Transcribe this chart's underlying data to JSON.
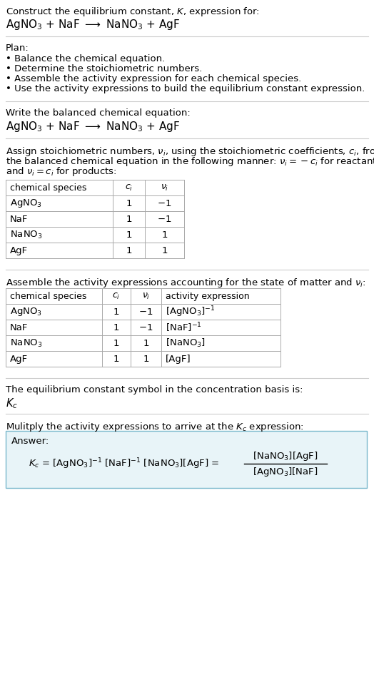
{
  "title_line1": "Construct the equilibrium constant, $K$, expression for:",
  "title_line2": "AgNO$_3$ + NaF $\\longrightarrow$ NaNO$_3$ + AgF",
  "plan_header": "Plan:",
  "plan_items": [
    "• Balance the chemical equation.",
    "• Determine the stoichiometric numbers.",
    "• Assemble the activity expression for each chemical species.",
    "• Use the activity expressions to build the equilibrium constant expression."
  ],
  "balanced_eq_header": "Write the balanced chemical equation:",
  "balanced_eq": "AgNO$_3$ + NaF $\\longrightarrow$ NaNO$_3$ + AgF",
  "stoich_intro_parts": [
    "Assign stoichiometric numbers, $\\nu_i$, using the stoichiometric coefficients, $c_i$, from",
    "the balanced chemical equation in the following manner: $\\nu_i = -c_i$ for reactants",
    "and $\\nu_i = c_i$ for products:"
  ],
  "table1_headers": [
    "chemical species",
    "$c_i$",
    "$\\nu_i$"
  ],
  "table1_rows": [
    [
      "AgNO$_3$",
      "1",
      "$-1$"
    ],
    [
      "NaF",
      "1",
      "$-1$"
    ],
    [
      "NaNO$_3$",
      "1",
      "1"
    ],
    [
      "AgF",
      "1",
      "1"
    ]
  ],
  "activity_intro": "Assemble the activity expressions accounting for the state of matter and $\\nu_i$:",
  "table2_headers": [
    "chemical species",
    "$c_i$",
    "$\\nu_i$",
    "activity expression"
  ],
  "table2_rows": [
    [
      "AgNO$_3$",
      "1",
      "$-1$",
      "[AgNO$_3$]$^{-1}$"
    ],
    [
      "NaF",
      "1",
      "$-1$",
      "[NaF]$^{-1}$"
    ],
    [
      "NaNO$_3$",
      "1",
      "1",
      "[NaNO$_3$]"
    ],
    [
      "AgF",
      "1",
      "1",
      "[AgF]"
    ]
  ],
  "kc_header": "The equilibrium constant symbol in the concentration basis is:",
  "kc_symbol": "$K_c$",
  "multiply_header": "Mulitply the activity expressions to arrive at the $K_c$ expression:",
  "answer_label": "Answer:",
  "bg_color": "#ffffff",
  "text_color": "#000000",
  "table_border_color": "#aaaaaa",
  "answer_bg_color": "#e8f4f8",
  "answer_border_color": "#7ab8cc",
  "separator_color": "#cccccc",
  "font_size": 9.5,
  "table_font_size": 9.5
}
